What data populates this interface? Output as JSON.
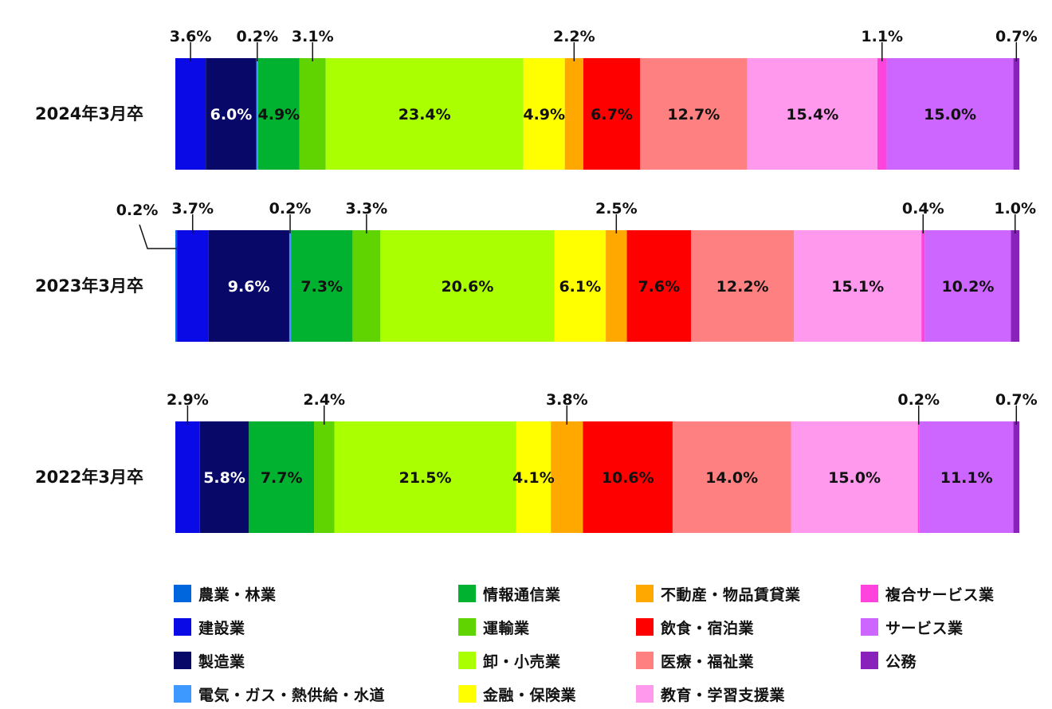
{
  "chart_data": {
    "type": "bar",
    "orientation": "horizontal",
    "stacked": "percent",
    "categories": [
      "2024年3月卒",
      "2023年3月卒",
      "2022年3月卒"
    ],
    "series": [
      {
        "name": "農業・林業",
        "color": "#0066dd",
        "values": [
          0.0,
          0.2,
          0.0
        ]
      },
      {
        "name": "建設業",
        "color": "#0a0ae6",
        "values": [
          3.6,
          3.7,
          2.9
        ]
      },
      {
        "name": "製造業",
        "color": "#080868",
        "values": [
          6.0,
          9.6,
          5.8
        ]
      },
      {
        "name": "電気・ガス・熱供給・水道",
        "color": "#3d99ff",
        "values": [
          0.2,
          0.2,
          0.0
        ]
      },
      {
        "name": "情報通信業",
        "color": "#00b22f",
        "values": [
          4.9,
          7.3,
          7.7
        ]
      },
      {
        "name": "運輸業",
        "color": "#5fd400",
        "values": [
          3.1,
          3.3,
          2.4
        ]
      },
      {
        "name": "卸・小売業",
        "color": "#aaff00",
        "values": [
          23.4,
          20.6,
          21.5
        ]
      },
      {
        "name": "金融・保険業",
        "color": "#ffff00",
        "values": [
          4.9,
          6.1,
          4.1
        ]
      },
      {
        "name": "不動産・物品賃貸業",
        "color": "#ffa800",
        "values": [
          2.2,
          2.5,
          3.8
        ]
      },
      {
        "name": "飲食・宿泊業",
        "color": "#ff0000",
        "values": [
          6.7,
          7.6,
          10.6
        ]
      },
      {
        "name": "医療・福祉業",
        "color": "#ff8080",
        "values": [
          12.7,
          12.2,
          14.0
        ]
      },
      {
        "name": "教育・学習支援業",
        "color": "#ff99ee",
        "values": [
          15.4,
          15.1,
          15.0
        ]
      },
      {
        "name": "複合サービス業",
        "color": "#ff44dd",
        "values": [
          1.1,
          0.4,
          0.2
        ]
      },
      {
        "name": "サービス業",
        "color": "#cc66ff",
        "values": [
          15.0,
          10.2,
          11.1
        ]
      },
      {
        "name": "公務",
        "color": "#8822bb",
        "values": [
          0.7,
          1.0,
          0.7
        ]
      }
    ],
    "data_labels": [
      {
        "outside": [
          {
            "series": "建設業",
            "text": "3.6%"
          },
          {
            "series": "電気・ガス・熱供給・水道",
            "text": "0.2%"
          },
          {
            "series": "運輸業",
            "text": "3.1%"
          },
          {
            "series": "不動産・物品賃貸業",
            "text": "2.2%"
          },
          {
            "series": "複合サービス業",
            "text": "1.1%"
          },
          {
            "series": "公務",
            "text": "0.7%"
          }
        ],
        "inside": [
          {
            "series": "製造業",
            "text": "6.0%",
            "color": "#ffffff"
          },
          {
            "series": "情報通信業",
            "text": "4.9%",
            "color": "#111111"
          },
          {
            "series": "卸・小売業",
            "text": "23.4%",
            "color": "#111111"
          },
          {
            "series": "金融・保険業",
            "text": "4.9%",
            "color": "#111111"
          },
          {
            "series": "飲食・宿泊業",
            "text": "6.7%",
            "color": "#111111"
          },
          {
            "series": "医療・福祉業",
            "text": "12.7%",
            "color": "#111111"
          },
          {
            "series": "教育・学習支援業",
            "text": "15.4%",
            "color": "#111111"
          },
          {
            "series": "サービス業",
            "text": "15.0%",
            "color": "#111111"
          }
        ]
      },
      {
        "outside": [
          {
            "series": "農業・林業",
            "text": "0.2%",
            "elbow": true
          },
          {
            "series": "建設業",
            "text": "3.7%"
          },
          {
            "series": "電気・ガス・熱供給・水道",
            "text": "0.2%"
          },
          {
            "series": "運輸業",
            "text": "3.3%"
          },
          {
            "series": "不動産・物品賃貸業",
            "text": "2.5%"
          },
          {
            "series": "複合サービス業",
            "text": "0.4%"
          },
          {
            "series": "公務",
            "text": "1.0%"
          }
        ],
        "inside": [
          {
            "series": "製造業",
            "text": "9.6%",
            "color": "#ffffff"
          },
          {
            "series": "情報通信業",
            "text": "7.3%",
            "color": "#111111"
          },
          {
            "series": "卸・小売業",
            "text": "20.6%",
            "color": "#111111"
          },
          {
            "series": "金融・保険業",
            "text": "6.1%",
            "color": "#111111"
          },
          {
            "series": "飲食・宿泊業",
            "text": "7.6%",
            "color": "#111111"
          },
          {
            "series": "医療・福祉業",
            "text": "12.2%",
            "color": "#111111"
          },
          {
            "series": "教育・学習支援業",
            "text": "15.1%",
            "color": "#111111"
          },
          {
            "series": "サービス業",
            "text": "10.2%",
            "color": "#111111"
          }
        ]
      },
      {
        "outside": [
          {
            "series": "建設業",
            "text": "2.9%"
          },
          {
            "series": "運輸業",
            "text": "2.4%"
          },
          {
            "series": "不動産・物品賃貸業",
            "text": "3.8%"
          },
          {
            "series": "複合サービス業",
            "text": "0.2%"
          },
          {
            "series": "公務",
            "text": "0.7%"
          }
        ],
        "inside": [
          {
            "series": "製造業",
            "text": "5.8%",
            "color": "#ffffff"
          },
          {
            "series": "情報通信業",
            "text": "7.7%",
            "color": "#111111"
          },
          {
            "series": "卸・小売業",
            "text": "21.5%",
            "color": "#111111"
          },
          {
            "series": "金融・保険業",
            "text": "4.1%",
            "color": "#111111"
          },
          {
            "series": "飲食・宿泊業",
            "text": "10.6%",
            "color": "#111111"
          },
          {
            "series": "医療・福祉業",
            "text": "14.0%",
            "color": "#111111"
          },
          {
            "series": "教育・学習支援業",
            "text": "15.0%",
            "color": "#111111"
          },
          {
            "series": "サービス業",
            "text": "11.1%",
            "color": "#111111"
          }
        ]
      }
    ],
    "legend_position": "bottom",
    "grid": false,
    "xlim": [
      0,
      100
    ]
  }
}
